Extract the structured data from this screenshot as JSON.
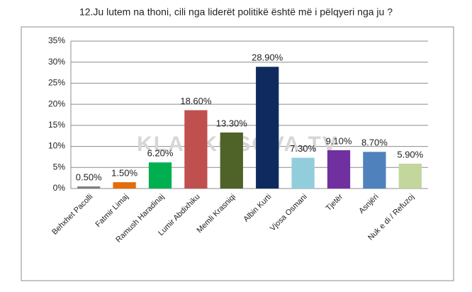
{
  "chart_data": {
    "type": "bar",
    "title": "12.Ju lutem na thoni, cili nga liderët politikë është më i pëlqyeri nga ju ?",
    "watermark": "KLANKOSOVA.TV",
    "categories": [
      "Behxhet Pacolli",
      "Fatmir Limaj",
      "Ramush Haradinaj",
      "Lumir Abdixhiku",
      "Memli Krasniqi",
      "Albin Kurti",
      "Vjosa Osmani",
      "Tjetër",
      "Asnjëri",
      "Nuk e di / Refuzoj"
    ],
    "values": [
      0.5,
      1.5,
      6.2,
      18.6,
      13.3,
      28.9,
      7.3,
      9.1,
      8.7,
      5.9
    ],
    "value_labels": [
      "0.50%",
      "1.50%",
      "6.20%",
      "18.60%",
      "13.30%",
      "28.90%",
      "7.30%",
      "9.10%",
      "8.70%",
      "5.90%"
    ],
    "colors": [
      "#7f7f7f",
      "#e46c0a",
      "#00b050",
      "#c0504d",
      "#4f6228",
      "#0f2a5e",
      "#92cddc",
      "#7030a0",
      "#4f81bd",
      "#c3d69b"
    ],
    "ylim": [
      0,
      35
    ],
    "yticks": [
      {
        "value": 0,
        "label": "0%"
      },
      {
        "value": 5,
        "label": "5%"
      },
      {
        "value": 10,
        "label": "10%"
      },
      {
        "value": 15,
        "label": "15%"
      },
      {
        "value": 20,
        "label": "20%"
      },
      {
        "value": 25,
        "label": "25%"
      },
      {
        "value": 30,
        "label": "30%"
      },
      {
        "value": 35,
        "label": "35%"
      }
    ],
    "grid": true
  }
}
